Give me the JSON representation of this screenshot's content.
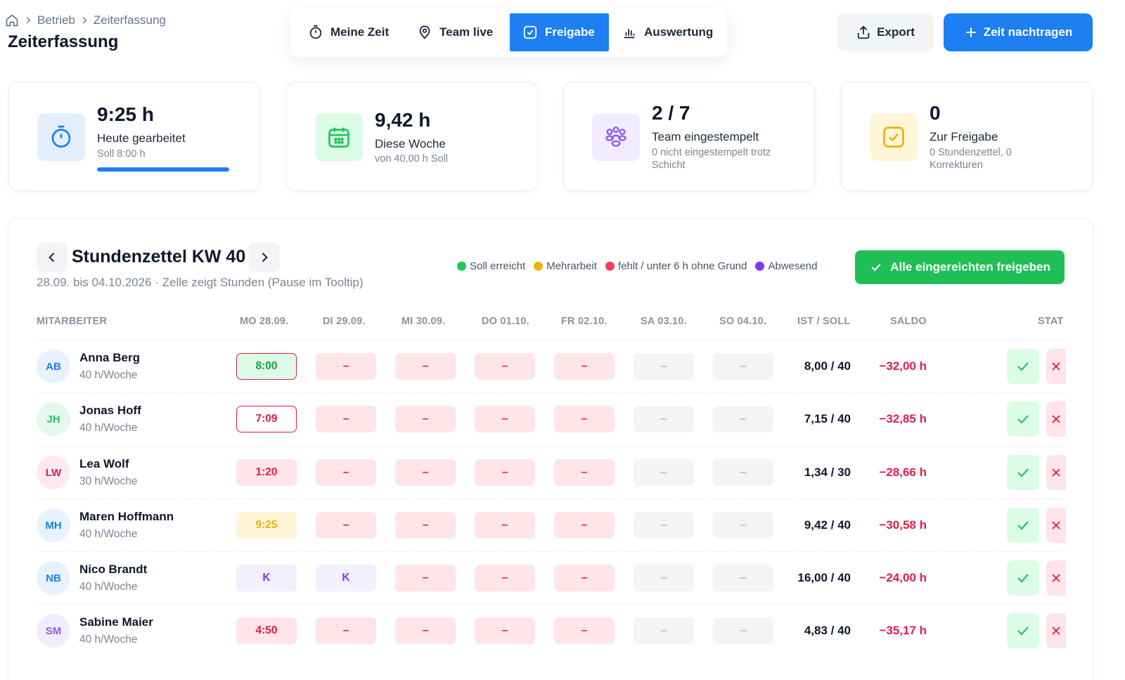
{
  "breadcrumb": {
    "items": [
      "Betrieb",
      "Zeiterfassung"
    ]
  },
  "page_title": "Zeiterfassung",
  "tabs": [
    {
      "label": "Meine Zeit",
      "icon": "stopwatch-icon",
      "active": false
    },
    {
      "label": "Team live",
      "icon": "location-pin-icon",
      "active": false
    },
    {
      "label": "Freigabe",
      "icon": "check-square-icon",
      "active": true
    },
    {
      "label": "Auswertung",
      "icon": "bar-chart-icon",
      "active": false
    }
  ],
  "actions": {
    "export_label": "Export",
    "add_time_label": "Zeit nachtragen"
  },
  "stats": [
    {
      "value": "9:25 h",
      "label": "Heute gearbeitet",
      "sub": "Soll 8:00 h",
      "progress": 1.0,
      "icon": "stopwatch-icon",
      "color": "#1d7ff2"
    },
    {
      "value": "9,42 h",
      "label": "Diese Woche",
      "sub": "von 40,00 h Soll",
      "icon": "calendar-icon",
      "color": "#22c55e"
    },
    {
      "value": "2 / 7",
      "label": "Team eingestempelt",
      "sub": "0 nicht eingestempelt trotz Schicht",
      "icon": "team-icon",
      "color": "#8b5cf6"
    },
    {
      "value": "0",
      "label": "Zur Freigabe",
      "sub": "0 Stundenzettel, 0 Korrekturen",
      "icon": "check-square-icon",
      "color": "#eab308"
    }
  ],
  "timesheet": {
    "title": "Stundenzettel KW 40",
    "subtitle": "28.09. bis 04.10.2026 · Zelle zeigt Stunden (Pause im Tooltip)",
    "legend": [
      {
        "label": "Soll erreicht",
        "color": "#22c55e"
      },
      {
        "label": "Mehrarbeit",
        "color": "#eab308"
      },
      {
        "label": "fehlt / unter 6 h ohne Grund",
        "color": "#f43f5e"
      },
      {
        "label": "Abwesend",
        "color": "#7c3aed"
      }
    ],
    "approve_all_label": "Alle eingereichten freigeben",
    "columns": [
      "MITARBEITER",
      "MO 28.09.",
      "DI 29.09.",
      "MI 30.09.",
      "DO 01.10.",
      "FR 02.10.",
      "SA 03.10.",
      "SO 04.10.",
      "IST / SOLL",
      "SALDO",
      "STAT"
    ],
    "rows": [
      {
        "initials": "AB",
        "name": "Anna Berg",
        "hours": "40 h/Woche",
        "days": [
          "8:00",
          "–",
          "–",
          "–",
          "–",
          "–",
          "–"
        ],
        "ist_soll": "8,00 / 40",
        "saldo": "−32,00 h"
      },
      {
        "initials": "JH",
        "name": "Jonas Hoff",
        "hours": "40 h/Woche",
        "days": [
          "7:09",
          "–",
          "–",
          "–",
          "–",
          "–",
          "–"
        ],
        "ist_soll": "7,15 / 40",
        "saldo": "−32,85 h"
      },
      {
        "initials": "LW",
        "name": "Lea Wolf",
        "hours": "30 h/Woche",
        "days": [
          "1:20",
          "–",
          "–",
          "–",
          "–",
          "–",
          "–"
        ],
        "ist_soll": "1,34 / 30",
        "saldo": "−28,66 h"
      },
      {
        "initials": "MH",
        "name": "Maren Hoffmann",
        "hours": "40 h/Woche",
        "days": [
          "9:25",
          "–",
          "–",
          "–",
          "–",
          "–",
          "–"
        ],
        "ist_soll": "9,42 / 40",
        "saldo": "−30,58 h"
      },
      {
        "initials": "NB",
        "name": "Nico Brandt",
        "hours": "40 h/Woche",
        "days": [
          "K",
          "K",
          "–",
          "–",
          "–",
          "–",
          "–"
        ],
        "ist_soll": "16,00 / 40",
        "saldo": "−24,00 h"
      },
      {
        "initials": "SM",
        "name": "Sabine Maier",
        "hours": "40 h/Woche",
        "days": [
          "4:50",
          "–",
          "–",
          "–",
          "–",
          "–",
          "–"
        ],
        "ist_soll": "4,83 / 40",
        "saldo": "−35,17 h"
      }
    ]
  }
}
